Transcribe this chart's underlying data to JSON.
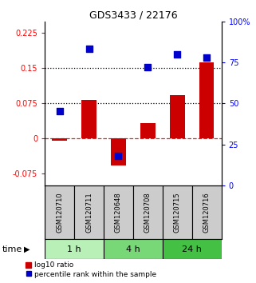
{
  "title": "GDS3433 / 22176",
  "samples": [
    "GSM120710",
    "GSM120711",
    "GSM120648",
    "GSM120708",
    "GSM120715",
    "GSM120716"
  ],
  "log10_ratio": [
    -0.005,
    0.082,
    -0.058,
    0.033,
    0.092,
    0.162
  ],
  "percentile_rank": [
    45,
    83,
    18,
    72,
    80,
    78
  ],
  "time_groups": [
    {
      "label": "1 h",
      "cols": [
        0,
        1
      ],
      "color": "#b8f0b8"
    },
    {
      "label": "4 h",
      "cols": [
        2,
        3
      ],
      "color": "#78d878"
    },
    {
      "label": "24 h",
      "cols": [
        4,
        5
      ],
      "color": "#44c044"
    }
  ],
  "ylim_left": [
    -0.1,
    0.25
  ],
  "ylim_right": [
    0,
    100
  ],
  "yticks_left": [
    -0.075,
    0,
    0.075,
    0.15,
    0.225
  ],
  "ytick_labels_left": [
    "-0.075",
    "0",
    "0.075",
    "0.15",
    "0.225"
  ],
  "yticks_right": [
    0,
    25,
    50,
    75,
    100
  ],
  "ytick_labels_right": [
    "0",
    "25",
    "50",
    "75",
    "100%"
  ],
  "hlines": [
    0.075,
    0.15
  ],
  "bar_color": "#cc0000",
  "dot_color": "#0000cc",
  "bar_width": 0.5,
  "dot_size": 28,
  "legend_bar_label": "log10 ratio",
  "legend_dot_label": "percentile rank within the sample",
  "time_label": "time",
  "sample_box_color": "#cccccc",
  "sample_box_edge": "#000000"
}
